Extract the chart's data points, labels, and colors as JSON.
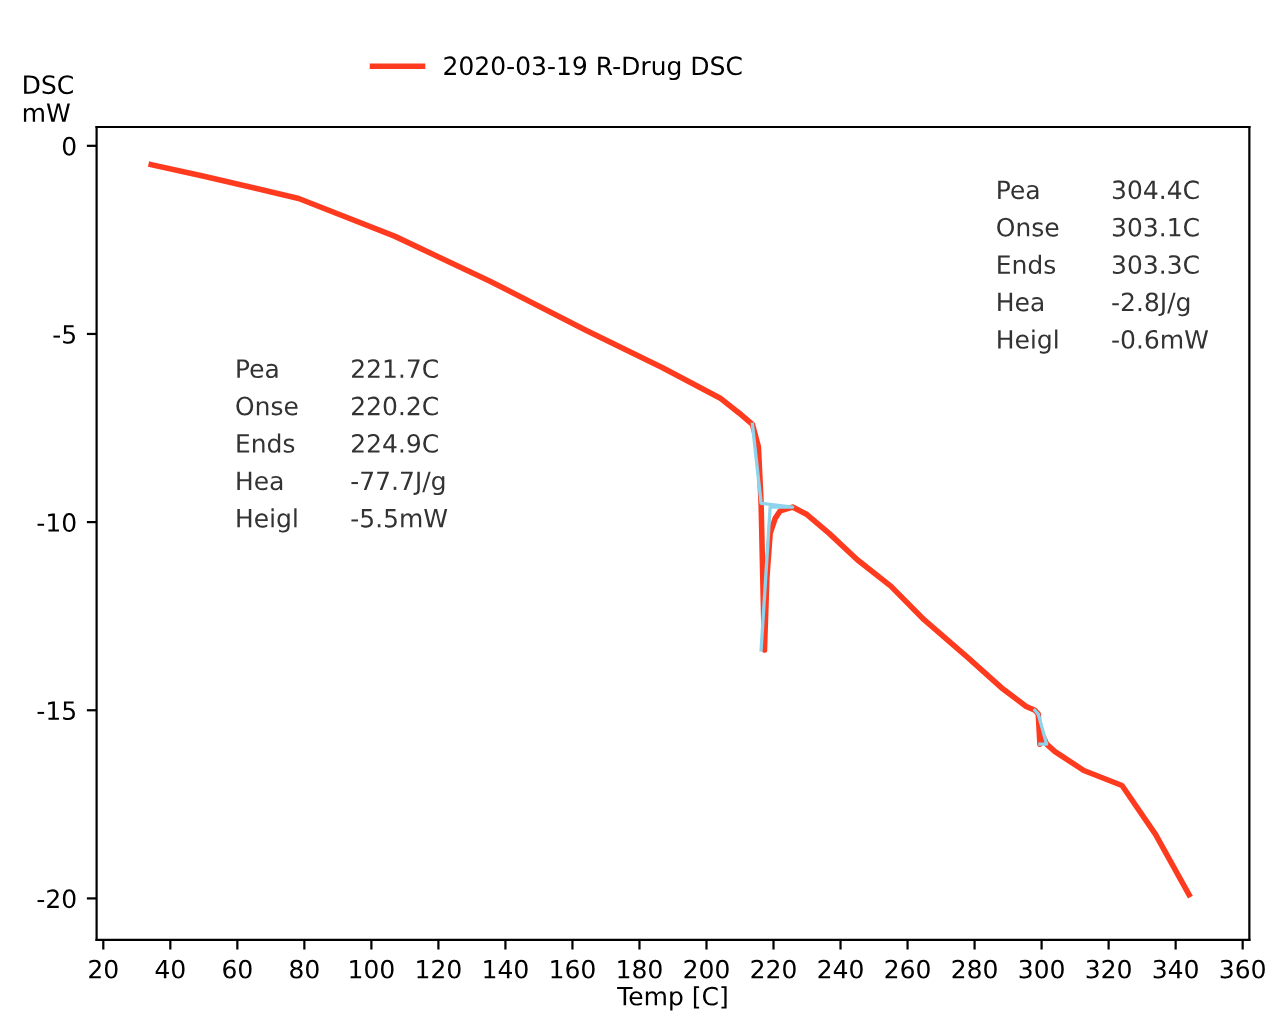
{
  "chart_data": {
    "type": "line",
    "ylabel": "DSC\nmW",
    "xlabel": "Temp [C]",
    "xlim": [
      18,
      362
    ],
    "ylim": [
      -21.1,
      0.5
    ],
    "xticks": [
      20,
      40,
      60,
      80,
      100,
      120,
      140,
      160,
      180,
      200,
      220,
      240,
      260,
      280,
      300,
      320,
      340,
      360
    ],
    "yticks": [
      0,
      -5,
      -10,
      -15,
      -20
    ],
    "grid": false,
    "legend": "top",
    "line_style": "solid",
    "marker": "none",
    "series": [
      {
        "name": "2020-03-19 R-Drug DSC",
        "color": "#ff3b1f",
        "x": [
          34.3,
          49.7,
          78.3,
          106.9,
          135.4,
          164,
          186.9,
          204,
          209.7,
          213.7,
          215.5,
          216.3,
          216.8,
          217.3,
          218,
          219,
          220.5,
          222,
          225.7,
          230,
          236.6,
          245,
          255,
          265,
          278,
          288,
          295.4,
          298,
          299,
          299.5,
          300.5,
          301.5,
          304,
          312.6,
          324,
          334,
          344
        ],
        "values": [
          -0.5,
          -0.8,
          -1.4,
          -2.4,
          -3.6,
          -4.9,
          -5.9,
          -6.7,
          -7.1,
          -7.4,
          -8.0,
          -9.5,
          -11.5,
          -13.4,
          -11.5,
          -10.3,
          -9.9,
          -9.7,
          -9.6,
          -9.8,
          -10.3,
          -11.0,
          -11.7,
          -12.6,
          -13.6,
          -14.4,
          -14.9,
          -15.0,
          -15.1,
          -15.9,
          -15.7,
          -15.9,
          -16.1,
          -16.6,
          -17.0,
          -18.3,
          -19.9
        ]
      },
      {
        "color": "#8fd3ec",
        "x": [
          213.7,
          216.3,
          225.7,
          219,
          216.3
        ],
        "values": [
          -7.4,
          -9.5,
          -9.6,
          -9.6,
          -13.4
        ]
      },
      {
        "color": "#8fd3ec",
        "x": [
          298,
          299,
          301.5,
          299.5
        ],
        "values": [
          -15.0,
          -15.1,
          -15.9,
          -15.9
        ]
      }
    ],
    "annotations": [
      "Pea",
      "221.7C",
      "Onse",
      "220.2C",
      "Ends",
      "224.9C",
      "Hea",
      "-77.7J/g",
      "Heigl",
      "-5.5mW",
      "Pea",
      "304.4C",
      "Onse",
      "303.1C",
      "Ends",
      "303.3C",
      "Hea",
      "-2.8J/g",
      "Heigl",
      "-0.6mW"
    ]
  }
}
